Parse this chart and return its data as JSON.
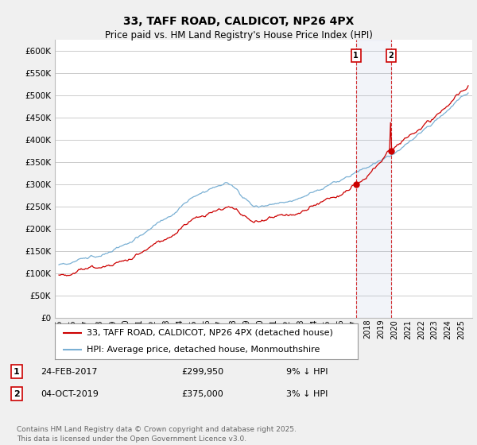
{
  "title": "33, TAFF ROAD, CALDICOT, NP26 4PX",
  "subtitle": "Price paid vs. HM Land Registry's House Price Index (HPI)",
  "ylabel_ticks": [
    "£0",
    "£50K",
    "£100K",
    "£150K",
    "£200K",
    "£250K",
    "£300K",
    "£350K",
    "£400K",
    "£450K",
    "£500K",
    "£550K",
    "£600K"
  ],
  "ylim": [
    0,
    625000
  ],
  "xlim_start": 1994.7,
  "xlim_end": 2025.8,
  "background_color": "#f0f0f0",
  "plot_bg_color": "#ffffff",
  "grid_color": "#cccccc",
  "red_line_color": "#cc0000",
  "blue_line_color": "#7ab0d4",
  "purchase_1": {
    "date": "24-FEB-2017",
    "price": 299950,
    "pct": "9%",
    "label": "1"
  },
  "purchase_2": {
    "date": "04-OCT-2019",
    "price": 375000,
    "pct": "3%",
    "label": "2"
  },
  "purchase_1_x": 2017.13,
  "purchase_2_x": 2019.75,
  "legend_line1": "33, TAFF ROAD, CALDICOT, NP26 4PX (detached house)",
  "legend_line2": "HPI: Average price, detached house, Monmouthshire",
  "footer": "Contains HM Land Registry data © Crown copyright and database right 2025.\nThis data is licensed under the Open Government Licence v3.0.",
  "title_fontsize": 10,
  "subtitle_fontsize": 8.5,
  "tick_fontsize": 7.5,
  "legend_fontsize": 8,
  "footer_fontsize": 6.5
}
